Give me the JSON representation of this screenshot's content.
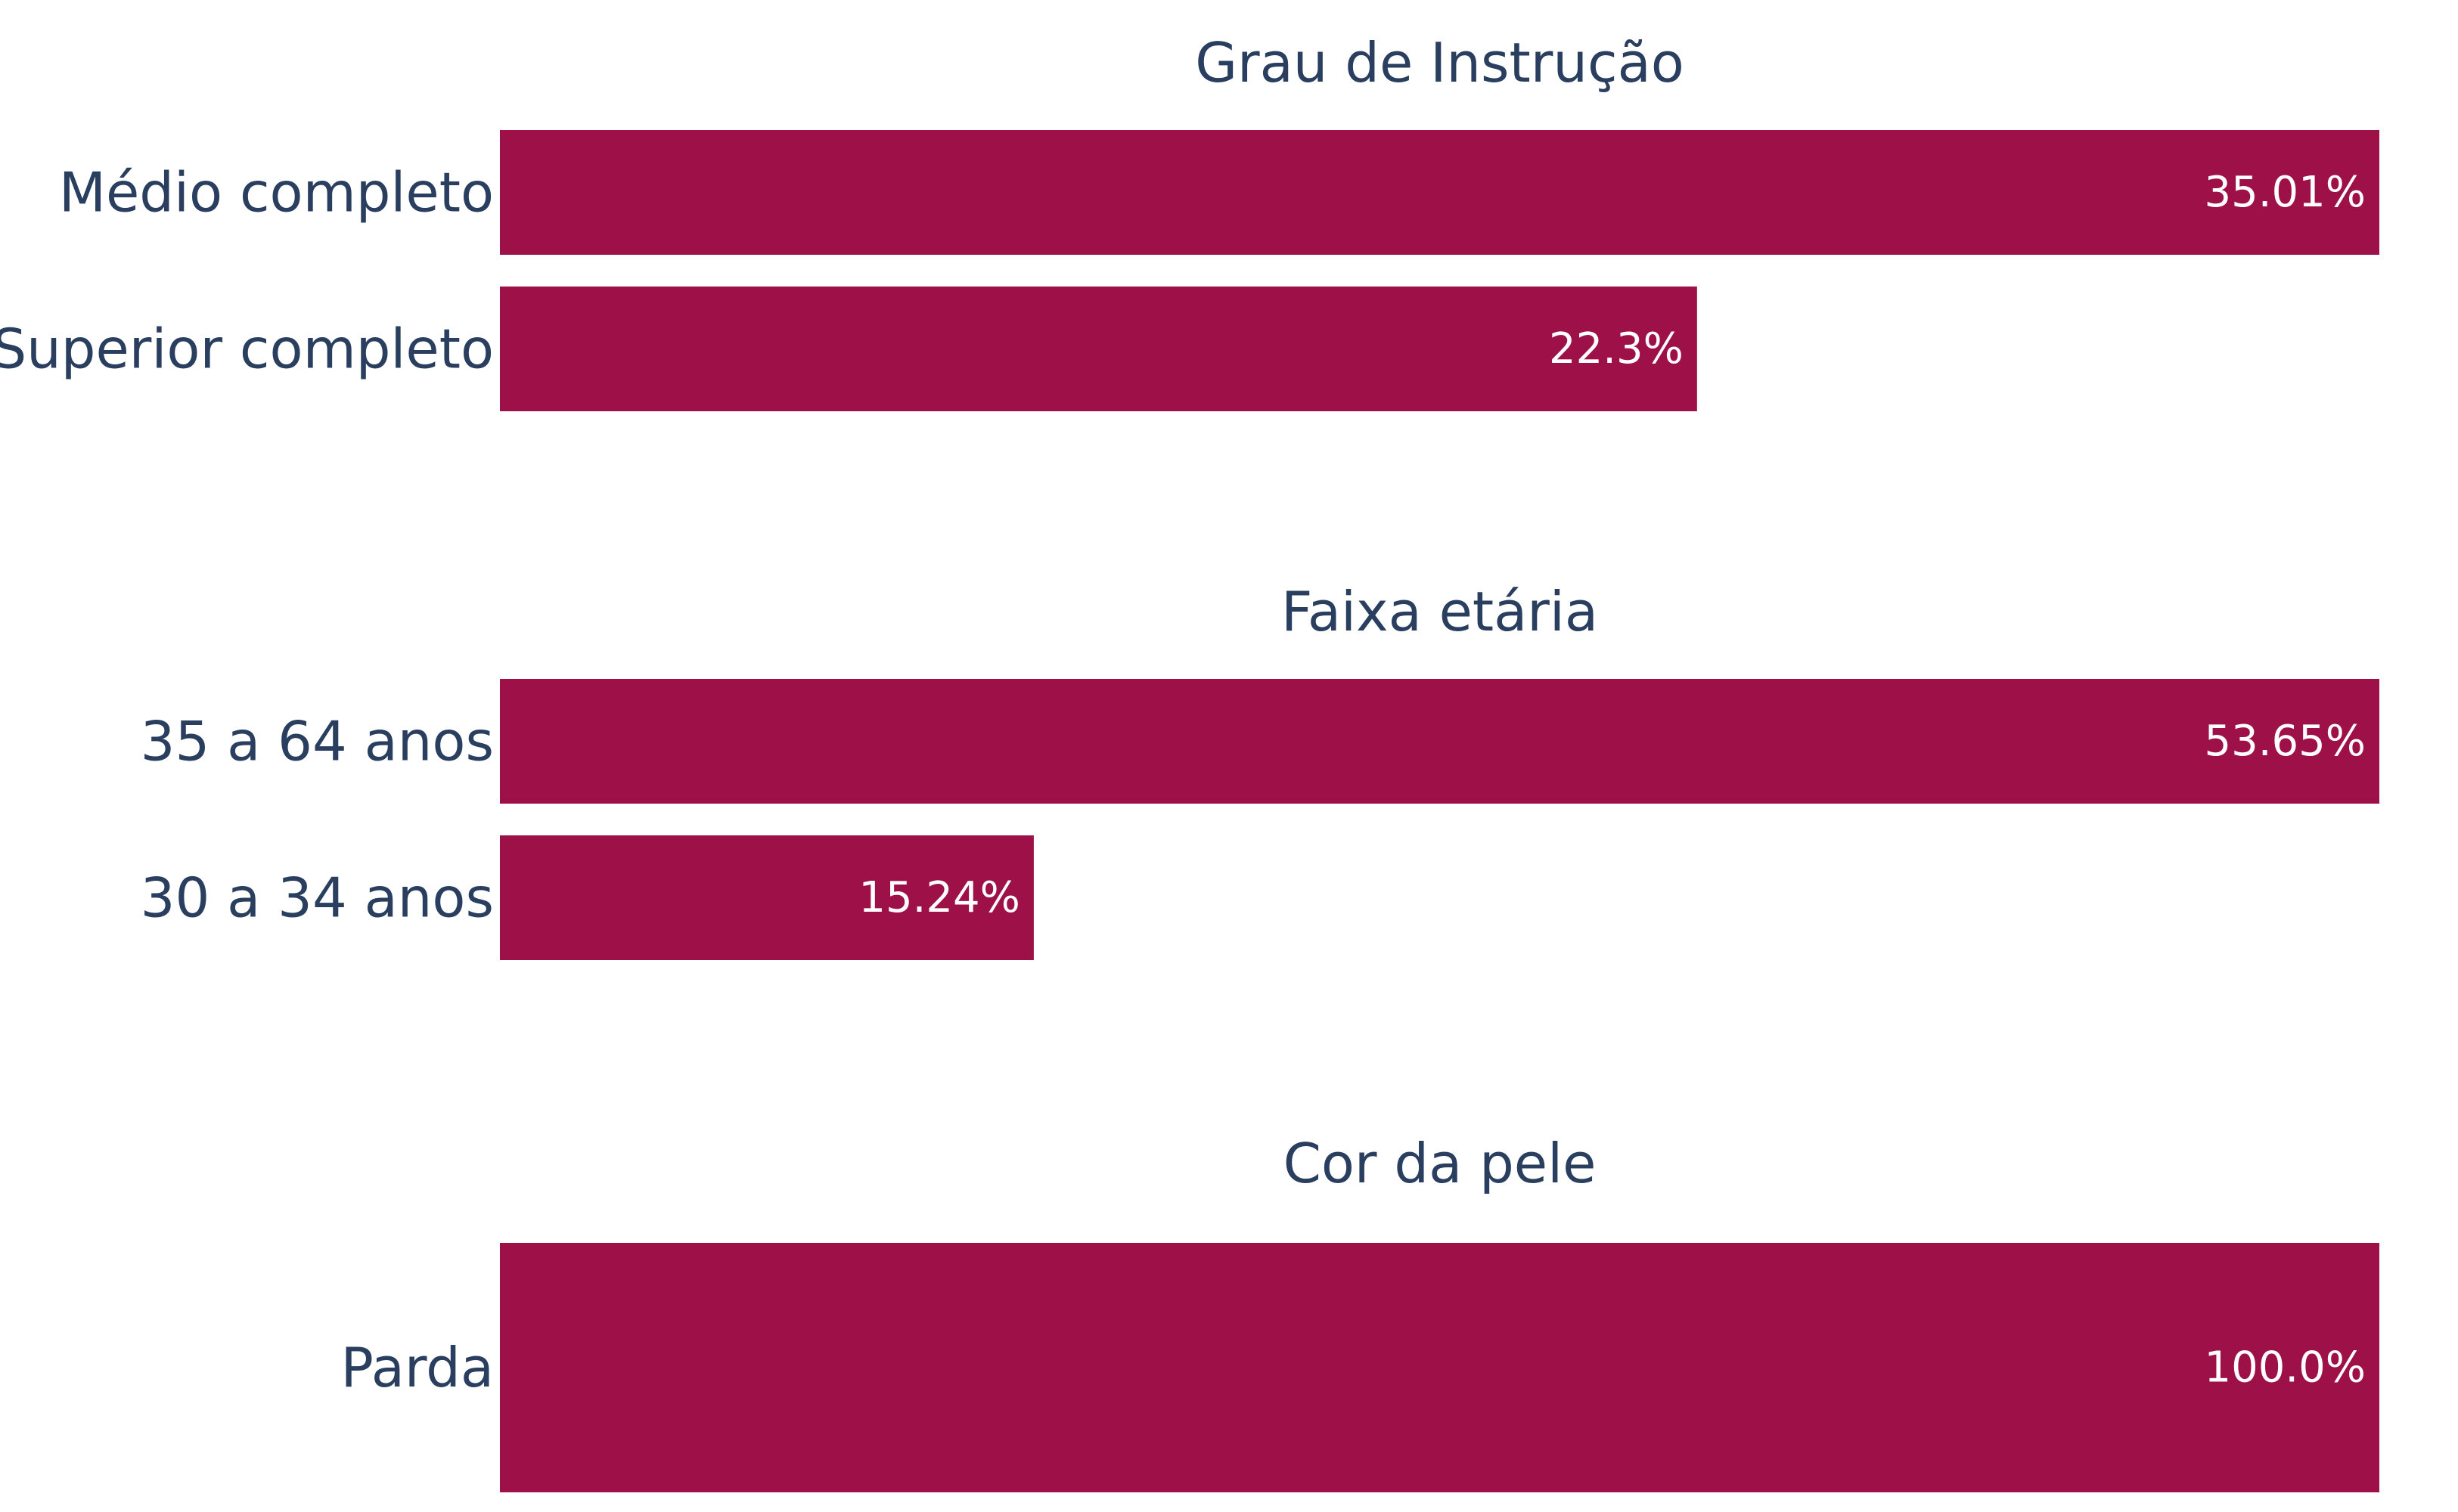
{
  "chart_data": [
    {
      "type": "bar",
      "orientation": "horizontal",
      "title": "Grau de Instrução",
      "categories": [
        "Médio completo",
        "Superior completo"
      ],
      "values": [
        35.01,
        22.3
      ],
      "labels": [
        "35.01%",
        "22.3%"
      ],
      "xlabel": "",
      "ylabel": "",
      "grid": false
    },
    {
      "type": "bar",
      "orientation": "horizontal",
      "title": "Faixa etária",
      "categories": [
        "35 a 64 anos",
        "30 a 34 anos"
      ],
      "values": [
        53.65,
        15.24
      ],
      "labels": [
        "53.65%",
        "15.24%"
      ],
      "xlabel": "",
      "ylabel": "",
      "grid": false
    },
    {
      "type": "bar",
      "orientation": "horizontal",
      "title": "Cor da pele",
      "categories": [
        "Parda"
      ],
      "values": [
        100.0
      ],
      "labels": [
        "100.0%"
      ],
      "xlabel": "",
      "ylabel": "",
      "grid": false
    }
  ],
  "colors": {
    "bar": "#9e1048",
    "text": "#2a3f5f",
    "bar_label": "#ffffff",
    "background": "#ffffff"
  }
}
